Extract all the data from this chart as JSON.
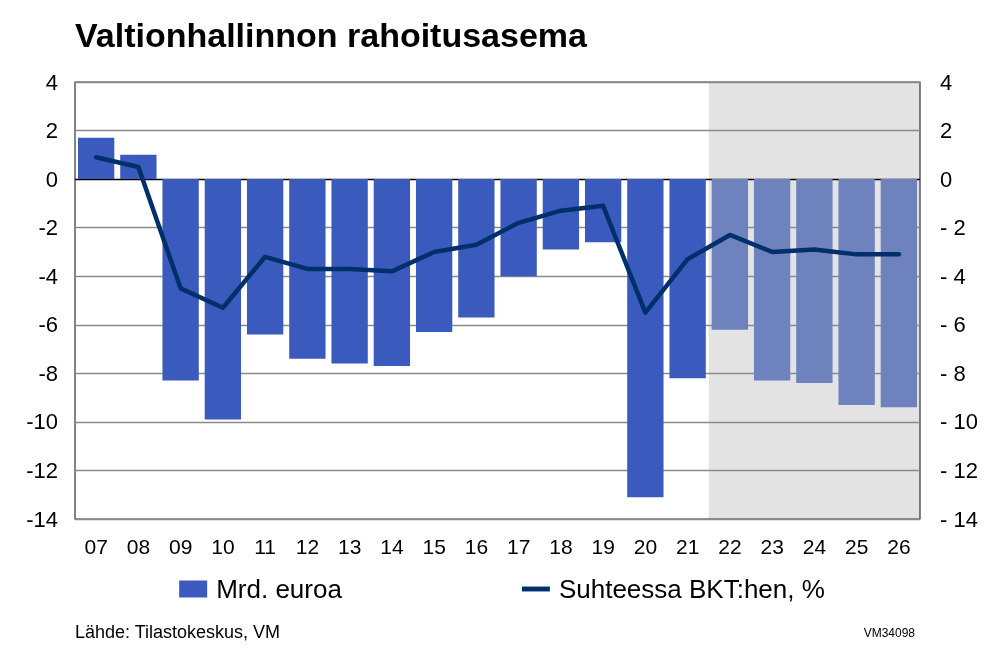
{
  "chart_data": {
    "type": "bar",
    "title": "Valtionhallinnon rahoitusasema",
    "categories": [
      "07",
      "08",
      "09",
      "10",
      "11",
      "12",
      "13",
      "14",
      "15",
      "16",
      "17",
      "18",
      "19",
      "20",
      "21",
      "22",
      "23",
      "24",
      "25",
      "26"
    ],
    "series": [
      {
        "name": "Mrd. euroa",
        "colors": [
          "#3a5bbd",
          "#3a5bbd",
          "#3a5bbd",
          "#3a5bbd",
          "#3a5bbd",
          "#3a5bbd",
          "#3a5bbd",
          "#3a5bbd",
          "#3a5bbd",
          "#3a5bbd",
          "#3a5bbd",
          "#3a5bbd",
          "#3a5bbd",
          "#3a5bbd",
          "#3a5bbd",
          "#6e82bd",
          "#6e82bd",
          "#6e82bd",
          "#6e82bd",
          "#6e82bd"
        ],
        "values": [
          1.7,
          1.0,
          -8.3,
          -9.9,
          -6.4,
          -7.4,
          -7.6,
          -7.7,
          -6.3,
          -5.7,
          -4.0,
          -2.9,
          -2.6,
          -13.1,
          -8.2,
          -6.2,
          -8.3,
          -8.4,
          -9.3,
          -9.4
        ]
      },
      {
        "type": "line",
        "name": "Suhteessa BKT:hen, %",
        "color": "#00306b",
        "axis": "y2",
        "values": [
          0.9,
          0.5,
          -4.5,
          -5.3,
          -3.2,
          -3.7,
          -3.7,
          -3.8,
          -3.0,
          -2.7,
          -1.8,
          -1.3,
          -1.1,
          -5.5,
          -3.3,
          -2.3,
          -3.0,
          -2.9,
          -3.1,
          -3.1
        ]
      }
    ],
    "ylim": [
      -14,
      4
    ],
    "yticks": [
      -14,
      -12,
      -10,
      -8,
      -6,
      -4,
      -2,
      0,
      2,
      4
    ],
    "y2lim": [
      -14,
      4
    ],
    "y2ticks": [
      {
        "value": -14,
        "label": "- 14"
      },
      {
        "value": -12,
        "label": "- 12"
      },
      {
        "value": -10,
        "label": "- 10"
      },
      {
        "value": -8,
        "label": "- 8"
      },
      {
        "value": -6,
        "label": "- 6"
      },
      {
        "value": -4,
        "label": "- 4"
      },
      {
        "value": -2,
        "label": "- 2"
      },
      0,
      2,
      4
    ],
    "bands": [
      {
        "axis": "x",
        "from": "22",
        "to": "26",
        "color": "#e3e3e3"
      }
    ],
    "grid": "y",
    "legend": "bottom",
    "marker": "none",
    "line_style": "solid",
    "annotations": [
      "Lähde: Tilastokeskus, VM",
      "VM34098"
    ]
  }
}
